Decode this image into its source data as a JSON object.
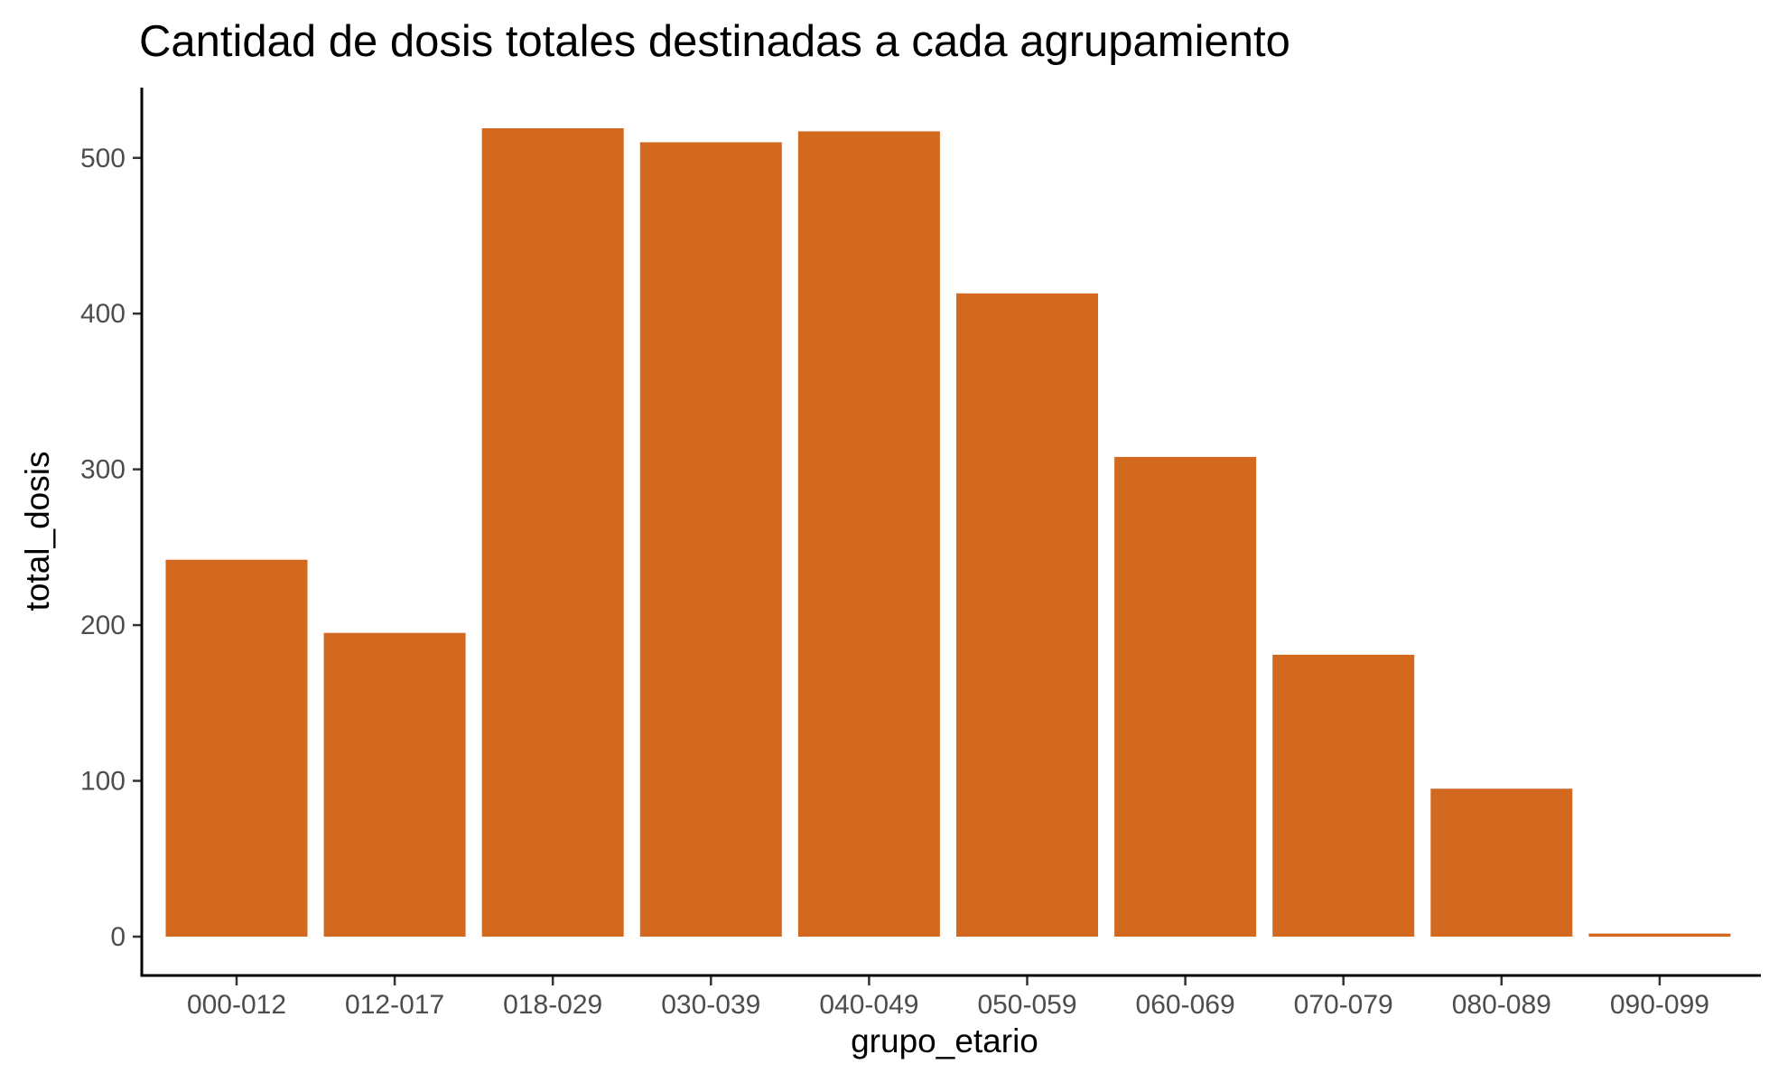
{
  "chart_data": {
    "type": "bar",
    "title": "Cantidad de dosis totales destinadas a cada agrupamiento",
    "xlabel": "grupo_etario",
    "ylabel": "total_dosis",
    "categories": [
      "000-012",
      "012-017",
      "018-029",
      "030-039",
      "040-049",
      "050-059",
      "060-069",
      "070-079",
      "080-089",
      "090-099"
    ],
    "values": [
      242,
      195,
      519,
      510,
      517,
      413,
      308,
      181,
      95,
      2
    ],
    "y_ticks": [
      0,
      100,
      200,
      300,
      400,
      500
    ],
    "ylim": [
      0,
      540
    ],
    "grid": false,
    "legend": "none",
    "bar_color": "#D2691E"
  }
}
